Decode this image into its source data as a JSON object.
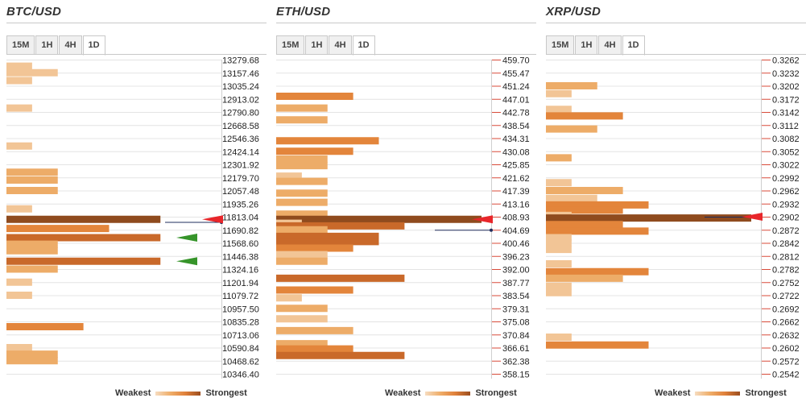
{
  "legend": {
    "weakest": "Weakest",
    "strongest": "Strongest"
  },
  "colors": {
    "arrow_red": "#e8262a",
    "arrow_green": "#36942a",
    "line": "#1f2d5c",
    "bar_levels": [
      "#f2c596",
      "#edac68",
      "#e3853b",
      "#c9692a",
      "#8f4b1e"
    ]
  },
  "charts": [
    {
      "type": "bar",
      "title": "BTC/USD",
      "tabs": [
        "15M",
        "1H",
        "4H",
        "1D"
      ],
      "active_tab": "1D",
      "price_ticks": [
        "13279.68",
        "13157.46",
        "13035.24",
        "12913.02",
        "12790.80",
        "12668.58",
        "12546.36",
        "12424.14",
        "12301.92",
        "12179.70",
        "12057.48",
        "11935.26",
        "11813.04",
        "11690.82",
        "11568.60",
        "11446.38",
        "11324.16",
        "11201.94",
        "11079.72",
        "10957.50",
        "10835.28",
        "10713.06",
        "10590.84",
        "10468.62",
        "10346.40"
      ],
      "ylim": [
        10346.4,
        13279.68
      ],
      "current_price_tick_index": 12.4,
      "bars": [
        {
          "pos": 0.5,
          "strength": 1,
          "level": 0
        },
        {
          "pos": 1.0,
          "strength": 2,
          "level": 0
        },
        {
          "pos": 1.6,
          "strength": 1,
          "level": 0
        },
        {
          "pos": 3.7,
          "strength": 1,
          "level": 0
        },
        {
          "pos": 6.6,
          "strength": 1,
          "level": 0
        },
        {
          "pos": 8.6,
          "strength": 2,
          "level": 1
        },
        {
          "pos": 9.2,
          "strength": 2,
          "level": 1
        },
        {
          "pos": 10.0,
          "strength": 2,
          "level": 1
        },
        {
          "pos": 11.4,
          "strength": 1,
          "level": 0
        },
        {
          "pos": 12.2,
          "strength": 6,
          "level": 4
        },
        {
          "pos": 12.9,
          "strength": 4,
          "level": 2
        },
        {
          "pos": 13.6,
          "strength": 6,
          "level": 3
        },
        {
          "pos": 14.1,
          "strength": 2,
          "level": 1
        },
        {
          "pos": 14.6,
          "strength": 2,
          "level": 1
        },
        {
          "pos": 15.4,
          "strength": 6,
          "level": 3
        },
        {
          "pos": 16.0,
          "strength": 2,
          "level": 1
        },
        {
          "pos": 17.0,
          "strength": 1,
          "level": 0
        },
        {
          "pos": 18.0,
          "strength": 1,
          "level": 0
        },
        {
          "pos": 20.4,
          "strength": 3,
          "level": 2
        },
        {
          "pos": 22.0,
          "strength": 1,
          "level": 0
        },
        {
          "pos": 22.5,
          "strength": 2,
          "level": 1
        },
        {
          "pos": 23.0,
          "strength": 2,
          "level": 1
        }
      ],
      "arrows": [
        {
          "pos": 12.2,
          "color": "red"
        },
        {
          "pos": 13.6,
          "color": "green"
        },
        {
          "pos": 15.4,
          "color": "green"
        }
      ]
    },
    {
      "type": "bar",
      "title": "ETH/USD",
      "tabs": [
        "15M",
        "1H",
        "4H",
        "1D"
      ],
      "active_tab": "1D",
      "price_ticks": [
        "459.70",
        "455.47",
        "451.24",
        "447.01",
        "442.78",
        "438.54",
        "434.31",
        "430.08",
        "425.85",
        "421.62",
        "417.39",
        "413.16",
        "408.93",
        "404.69",
        "400.46",
        "396.23",
        "392.00",
        "387.77",
        "383.54",
        "379.31",
        "375.08",
        "370.84",
        "366.61",
        "362.38",
        "358.15"
      ],
      "ylim": [
        358.15,
        459.7
      ],
      "current_price_tick_index": 13.0,
      "bars": [
        {
          "pos": 2.8,
          "strength": 3,
          "level": 2
        },
        {
          "pos": 3.7,
          "strength": 2,
          "level": 1
        },
        {
          "pos": 4.6,
          "strength": 2,
          "level": 1
        },
        {
          "pos": 6.2,
          "strength": 4,
          "level": 2
        },
        {
          "pos": 7.0,
          "strength": 3,
          "level": 2
        },
        {
          "pos": 7.6,
          "strength": 2,
          "level": 1
        },
        {
          "pos": 8.1,
          "strength": 2,
          "level": 1
        },
        {
          "pos": 8.9,
          "strength": 1,
          "level": 0
        },
        {
          "pos": 9.3,
          "strength": 2,
          "level": 1
        },
        {
          "pos": 10.2,
          "strength": 2,
          "level": 1
        },
        {
          "pos": 10.9,
          "strength": 2,
          "level": 1
        },
        {
          "pos": 11.8,
          "strength": 2,
          "level": 1
        },
        {
          "pos": 12.2,
          "strength": 8,
          "level": 4
        },
        {
          "pos": 12.5,
          "strength": 1,
          "level": 0
        },
        {
          "pos": 12.7,
          "strength": 5,
          "level": 3
        },
        {
          "pos": 13.0,
          "strength": 2,
          "level": 1
        },
        {
          "pos": 13.5,
          "strength": 4,
          "level": 3
        },
        {
          "pos": 13.9,
          "strength": 4,
          "level": 3
        },
        {
          "pos": 14.4,
          "strength": 3,
          "level": 2
        },
        {
          "pos": 14.9,
          "strength": 2,
          "level": 0
        },
        {
          "pos": 15.4,
          "strength": 2,
          "level": 1
        },
        {
          "pos": 16.7,
          "strength": 5,
          "level": 3
        },
        {
          "pos": 17.6,
          "strength": 3,
          "level": 2
        },
        {
          "pos": 18.2,
          "strength": 1,
          "level": 0
        },
        {
          "pos": 19.0,
          "strength": 2,
          "level": 1
        },
        {
          "pos": 19.8,
          "strength": 2,
          "level": 0
        },
        {
          "pos": 20.7,
          "strength": 3,
          "level": 1
        },
        {
          "pos": 21.7,
          "strength": 2,
          "level": 1
        },
        {
          "pos": 22.1,
          "strength": 3,
          "level": 2
        },
        {
          "pos": 22.6,
          "strength": 5,
          "level": 3
        }
      ],
      "arrows": [
        {
          "pos": 12.2,
          "color": "red"
        }
      ]
    },
    {
      "type": "bar",
      "title": "XRP/USD",
      "tabs": [
        "15M",
        "1H",
        "4H",
        "1D"
      ],
      "active_tab": "1D",
      "price_ticks": [
        "0.3262",
        "0.3232",
        "0.3202",
        "0.3172",
        "0.3142",
        "0.3112",
        "0.3082",
        "0.3052",
        "0.3022",
        "0.2992",
        "0.2962",
        "0.2932",
        "0.2902",
        "0.2872",
        "0.2842",
        "0.2812",
        "0.2782",
        "0.2752",
        "0.2722",
        "0.2692",
        "0.2662",
        "0.2632",
        "0.2602",
        "0.2572",
        "0.2542"
      ],
      "ylim": [
        0.2542,
        0.3262
      ],
      "current_price_tick_index": 12.0,
      "bars": [
        {
          "pos": 2.0,
          "strength": 2,
          "level": 1
        },
        {
          "pos": 2.6,
          "strength": 1,
          "level": 0
        },
        {
          "pos": 3.8,
          "strength": 1,
          "level": 0
        },
        {
          "pos": 4.3,
          "strength": 3,
          "level": 2
        },
        {
          "pos": 5.3,
          "strength": 2,
          "level": 1
        },
        {
          "pos": 7.5,
          "strength": 1,
          "level": 1
        },
        {
          "pos": 9.4,
          "strength": 1,
          "level": 0
        },
        {
          "pos": 10.0,
          "strength": 3,
          "level": 1
        },
        {
          "pos": 10.6,
          "strength": 2,
          "level": 0
        },
        {
          "pos": 11.1,
          "strength": 4,
          "level": 2
        },
        {
          "pos": 11.5,
          "strength": 3,
          "level": 2
        },
        {
          "pos": 11.9,
          "strength": 1,
          "level": 0
        },
        {
          "pos": 12.1,
          "strength": 8,
          "level": 4
        },
        {
          "pos": 12.6,
          "strength": 3,
          "level": 2
        },
        {
          "pos": 13.1,
          "strength": 4,
          "level": 2
        },
        {
          "pos": 13.6,
          "strength": 1,
          "level": 0
        },
        {
          "pos": 14.0,
          "strength": 1,
          "level": 0
        },
        {
          "pos": 14.5,
          "strength": 1,
          "level": 0
        },
        {
          "pos": 15.6,
          "strength": 1,
          "level": 0
        },
        {
          "pos": 16.2,
          "strength": 4,
          "level": 2
        },
        {
          "pos": 16.7,
          "strength": 3,
          "level": 1
        },
        {
          "pos": 17.3,
          "strength": 1,
          "level": 0
        },
        {
          "pos": 17.8,
          "strength": 1,
          "level": 0
        },
        {
          "pos": 21.2,
          "strength": 1,
          "level": 0
        },
        {
          "pos": 21.8,
          "strength": 4,
          "level": 2
        }
      ],
      "arrows": [
        {
          "pos": 12.0,
          "color": "red"
        }
      ]
    }
  ]
}
